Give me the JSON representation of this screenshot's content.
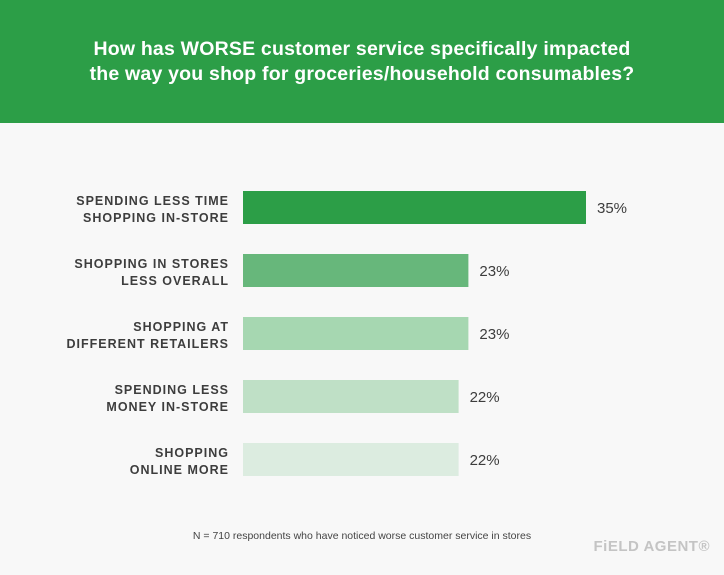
{
  "chart_data": {
    "type": "bar",
    "orientation": "horizontal",
    "title_lines": [
      "How has WORSE customer service specifically impacted",
      "the way you shop for groceries/household consumables?"
    ],
    "categories": [
      [
        "SPENDING LESS TIME",
        "SHOPPING IN-STORE"
      ],
      [
        "SHOPPING IN STORES",
        "LESS OVERALL"
      ],
      [
        "SHOPPING AT",
        "DIFFERENT RETAILERS"
      ],
      [
        "SPENDING LESS",
        "MONEY IN-STORE"
      ],
      [
        "SHOPPING",
        "ONLINE MORE"
      ]
    ],
    "values": [
      35,
      23,
      23,
      22,
      22
    ],
    "value_labels": [
      "35%",
      "23%",
      "23%",
      "22%",
      "22%"
    ],
    "bar_colors": [
      "#2c9e47",
      "#67b77b",
      "#a6d7b1",
      "#bfe0c6",
      "#dcece0"
    ],
    "xlim": [
      0,
      35
    ],
    "grid": false,
    "legend": "none"
  },
  "footnote": "N = 710 respondents who have noticed worse customer service in stores",
  "logo_text": "FiELD AGENT®"
}
